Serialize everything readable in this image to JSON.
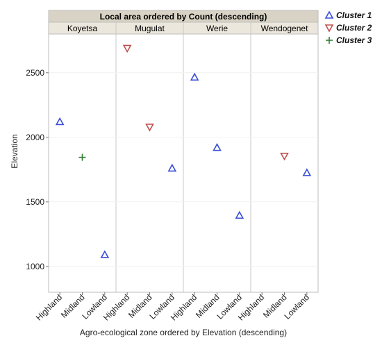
{
  "chart_data": {
    "type": "scatter",
    "title": "Local area ordered by Count (descending)",
    "xlabel": "Agro-ecological zone ordered by Elevation (descending)",
    "ylabel": "Elevation",
    "ylim": [
      800,
      2800
    ],
    "yticks": [
      1000,
      1500,
      2000,
      2500
    ],
    "panels": [
      "Koyetsa",
      "Mugulat",
      "Werie",
      "Wendogenet"
    ],
    "categories": [
      "Highland",
      "Midland",
      "Lowland"
    ],
    "legend_position": "right",
    "series": [
      {
        "name": "Cluster 1",
        "marker": "triangle-up",
        "color": "#3a4fd8",
        "points": [
          {
            "panel": "Koyetsa",
            "category": "Highland",
            "y": 2120
          },
          {
            "panel": "Koyetsa",
            "category": "Lowland",
            "y": 1090
          },
          {
            "panel": "Mugulat",
            "category": "Lowland",
            "y": 1760
          },
          {
            "panel": "Werie",
            "category": "Highland",
            "y": 2465
          },
          {
            "panel": "Werie",
            "category": "Midland",
            "y": 1920
          },
          {
            "panel": "Werie",
            "category": "Lowland",
            "y": 1395
          },
          {
            "panel": "Wendogenet",
            "category": "Lowland",
            "y": 1725
          }
        ]
      },
      {
        "name": "Cluster 2",
        "marker": "triangle-down",
        "color": "#c0504d",
        "points": [
          {
            "panel": "Mugulat",
            "category": "Highland",
            "y": 2690
          },
          {
            "panel": "Mugulat",
            "category": "Midland",
            "y": 2080
          },
          {
            "panel": "Wendogenet",
            "category": "Midland",
            "y": 1855
          }
        ]
      },
      {
        "name": "Cluster 3",
        "marker": "plus",
        "color": "#2e7d32",
        "points": [
          {
            "panel": "Koyetsa",
            "category": "Midland",
            "y": 1845
          }
        ]
      }
    ]
  }
}
